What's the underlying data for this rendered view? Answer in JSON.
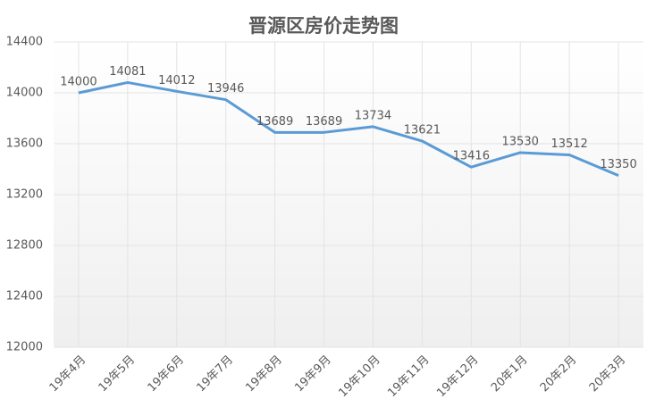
{
  "chart_data": {
    "type": "line",
    "title": "晋源区房价走势图",
    "categories": [
      "19年4月",
      "19年5月",
      "19年6月",
      "19年7月",
      "19年8月",
      "19年9月",
      "19年10月",
      "19年11月",
      "19年12月",
      "20年1月",
      "20年2月",
      "20年3月"
    ],
    "values": [
      14000,
      14081,
      14012,
      13946,
      13689,
      13689,
      13734,
      13621,
      13416,
      13530,
      13512,
      13350
    ],
    "color": "#5b9bd5",
    "ylim": [
      12000,
      14400
    ],
    "yticks": [
      12000,
      12400,
      12800,
      13200,
      13600,
      14000,
      14400
    ],
    "grid": true
  }
}
